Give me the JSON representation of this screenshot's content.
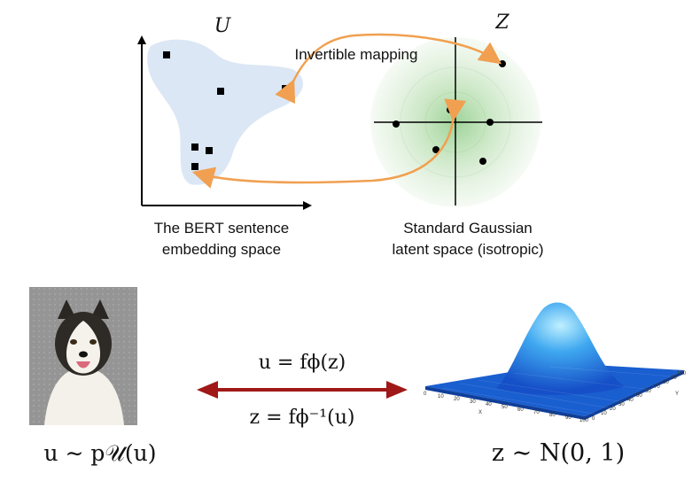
{
  "top": {
    "u_title": "U",
    "z_title": "Z",
    "mapping_label": "Invertible mapping",
    "bert_label_line1": "The BERT sentence",
    "bert_label_line2": "embedding space",
    "gauss_label_line1": "Standard Gaussian",
    "gauss_label_line2": "latent space (isotropic)"
  },
  "bottom": {
    "eq_forward": "u = fϕ(z)",
    "eq_inverse": "z = fϕ⁻¹(u)",
    "u_dist": "u ∼ p𝒰(u)",
    "z_dist": "z ∼ N(0, 1)",
    "surface_x_ticks": [
      "0",
      "10",
      "20",
      "30",
      "40",
      "50",
      "60",
      "70",
      "80",
      "90",
      "100"
    ],
    "surface_y_ticks": [
      "0",
      "10",
      "20",
      "30",
      "40",
      "50",
      "60",
      "70",
      "80",
      "90",
      "100"
    ],
    "surface_x_label": "X",
    "surface_y_label": "Y"
  },
  "colors": {
    "blob_fill": "#dbe7f5",
    "gauss_ring": "#d9ecd6",
    "arrow_orange": "#f0a050",
    "arrow_red": "#a01818",
    "surface_blue": "#1a5fd0"
  }
}
